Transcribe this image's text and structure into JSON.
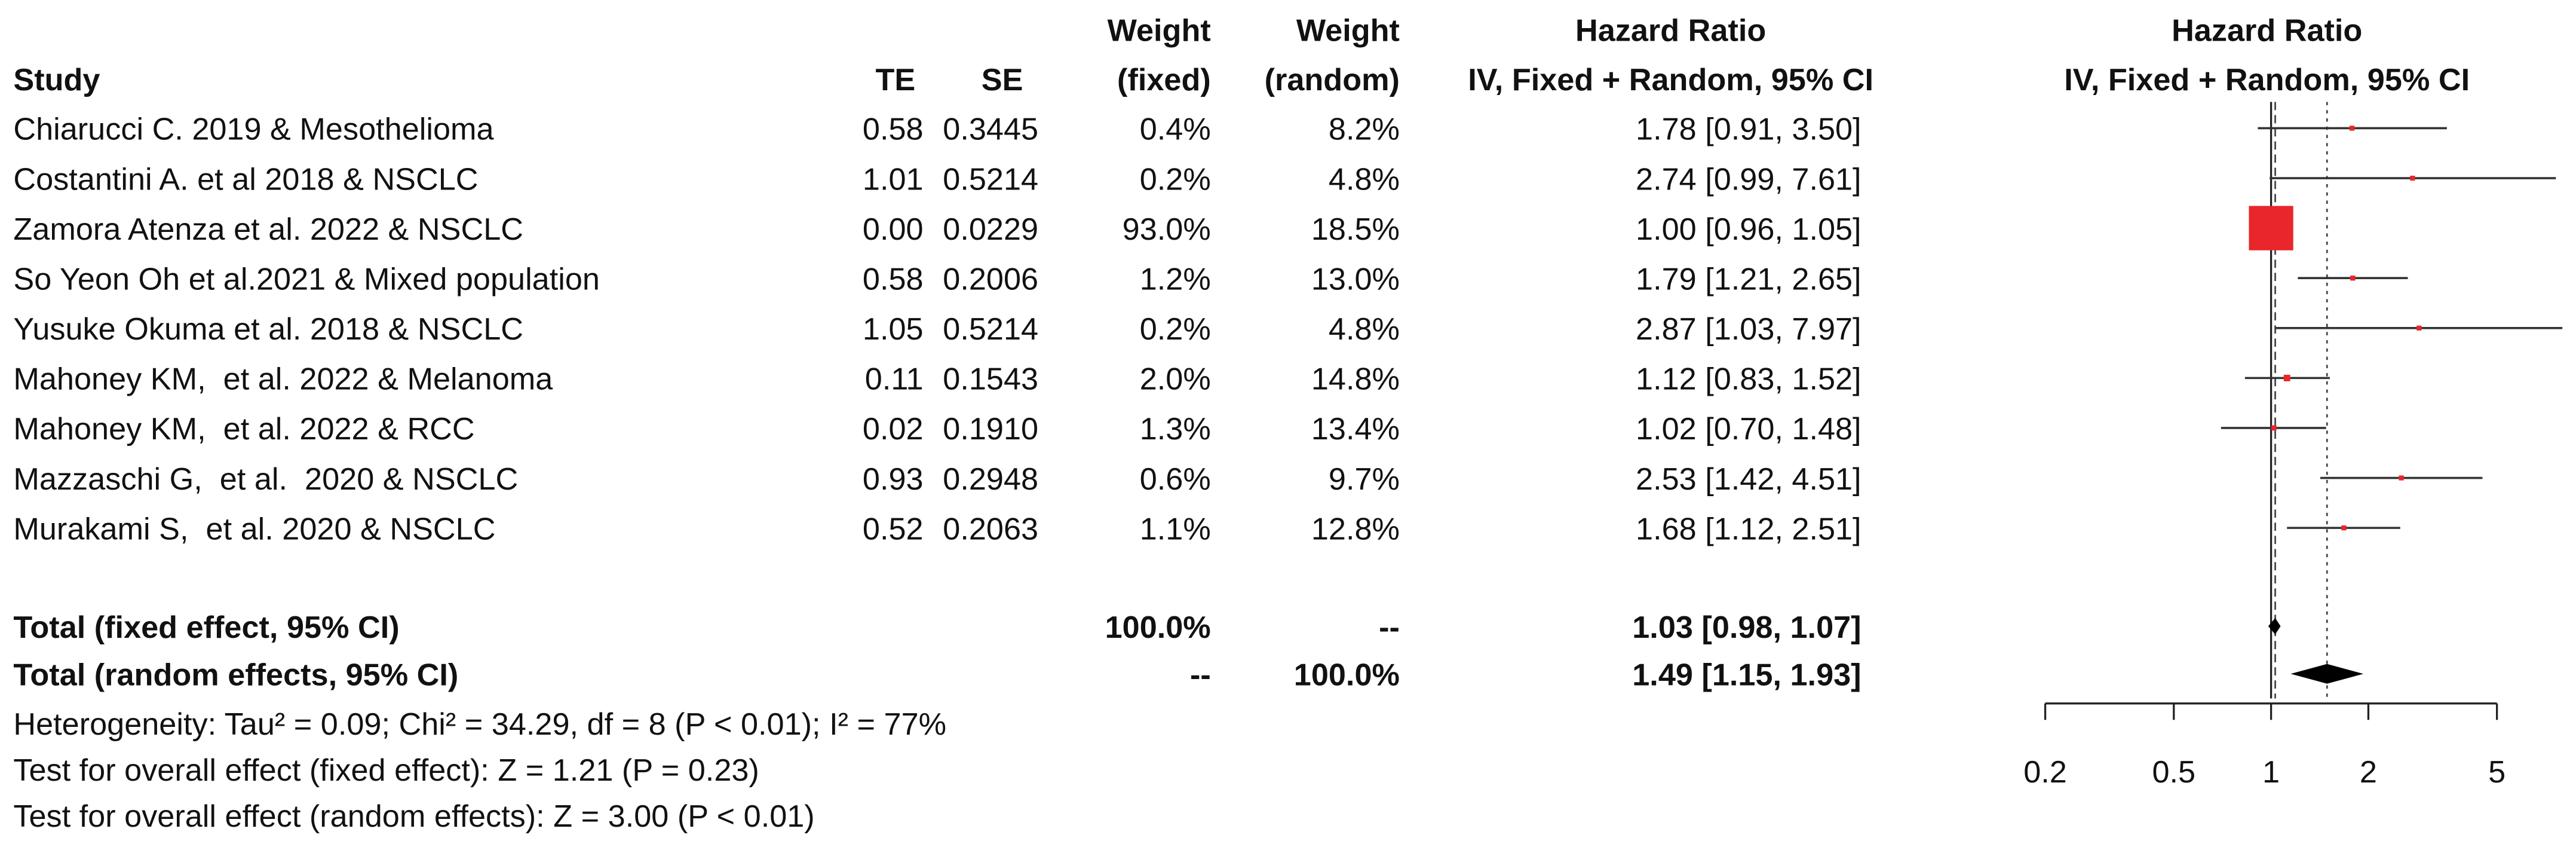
{
  "chart_data": {
    "type": "forest",
    "headers": {
      "study": "Study",
      "te": "TE",
      "se": "SE",
      "w_fixed": [
        "Weight",
        "(fixed)"
      ],
      "w_random": [
        "Weight",
        "(random)"
      ],
      "ci": [
        "Hazard Ratio",
        "IV, Fixed + Random, 95% CI"
      ]
    },
    "plot_header": [
      "Hazard Ratio",
      "IV, Fixed + Random, 95% CI"
    ],
    "rows": [
      [
        "Chiarucci C. 2019 & Mesothelioma",
        "0.58",
        "0.3445",
        "0.4%",
        "8.2%",
        "1.78 [0.91, 3.50]"
      ],
      [
        "Costantini A. et al 2018 & NSCLC",
        "1.01",
        "0.5214",
        "0.2%",
        "4.8%",
        "2.74 [0.99, 7.61]"
      ],
      [
        "Zamora Atenza et al. 2022 & NSCLC",
        "0.00",
        "0.0229",
        "93.0%",
        "18.5%",
        "1.00 [0.96, 1.05]"
      ],
      [
        "So Yeon Oh et al.2021 & Mixed population",
        "0.58",
        "0.2006",
        "1.2%",
        "13.0%",
        "1.79 [1.21, 2.65]"
      ],
      [
        "Yusuke Okuma et al. 2018 & NSCLC",
        "1.05",
        "0.5214",
        "0.2%",
        "4.8%",
        "2.87 [1.03, 7.97]"
      ],
      [
        "Mahoney KM,  et al. 2022 & Melanoma",
        "0.11",
        "0.1543",
        "2.0%",
        "14.8%",
        "1.12 [0.83, 1.52]"
      ],
      [
        "Mahoney KM,  et al. 2022 & RCC",
        "0.02",
        "0.1910",
        "1.3%",
        "13.4%",
        "1.02 [0.70, 1.48]"
      ],
      [
        "Mazzaschi G,  et al.  2020 & NSCLC",
        "0.93",
        "0.2948",
        "0.6%",
        "9.7%",
        "2.53 [1.42, 4.51]"
      ],
      [
        "Murakami S,  et al. 2020 & NSCLC",
        "0.52",
        "0.2063",
        "1.1%",
        "12.8%",
        "1.68 [1.12, 2.51]"
      ]
    ],
    "hr": [
      1.78,
      2.74,
      1.0,
      1.79,
      2.87,
      1.12,
      1.02,
      2.53,
      1.68
    ],
    "lower": [
      0.91,
      0.99,
      0.96,
      1.21,
      1.03,
      0.83,
      0.7,
      1.42,
      1.12
    ],
    "upper": [
      3.5,
      7.61,
      1.05,
      2.65,
      7.97,
      1.52,
      1.48,
      4.51,
      2.51
    ],
    "weight": [
      0.4,
      0.2,
      93.0,
      1.2,
      0.2,
      2.0,
      1.3,
      0.6,
      1.1
    ],
    "totals": [
      {
        "label": "Total (fixed effect, 95% CI)",
        "w_fixed": "100.0%",
        "w_random": "--",
        "ci": "1.03 [0.98, 1.07]",
        "hr": 1.03,
        "lower": 0.98,
        "upper": 1.07
      },
      {
        "label": "Total (random effects, 95% CI)",
        "w_fixed": "--",
        "w_random": "100.0%",
        "ci": "1.49 [1.15, 1.93]",
        "hr": 1.49,
        "lower": 1.15,
        "upper": 1.93
      }
    ],
    "notes": [
      "Heterogeneity: Tau² = 0.09; Chi² = 34.29, df = 8 (P < 0.01); I² = 77%",
      "Test for overall effect (fixed effect): Z = 1.21 (P = 0.23)",
      "Test for overall effect (random effects): Z = 3.00 (P < 0.01)"
    ],
    "log_scale": true,
    "xlim": [
      0.2,
      5
    ],
    "xticks": [
      0.2,
      0.5,
      1,
      2,
      5
    ],
    "box_color": "#e8262b"
  }
}
